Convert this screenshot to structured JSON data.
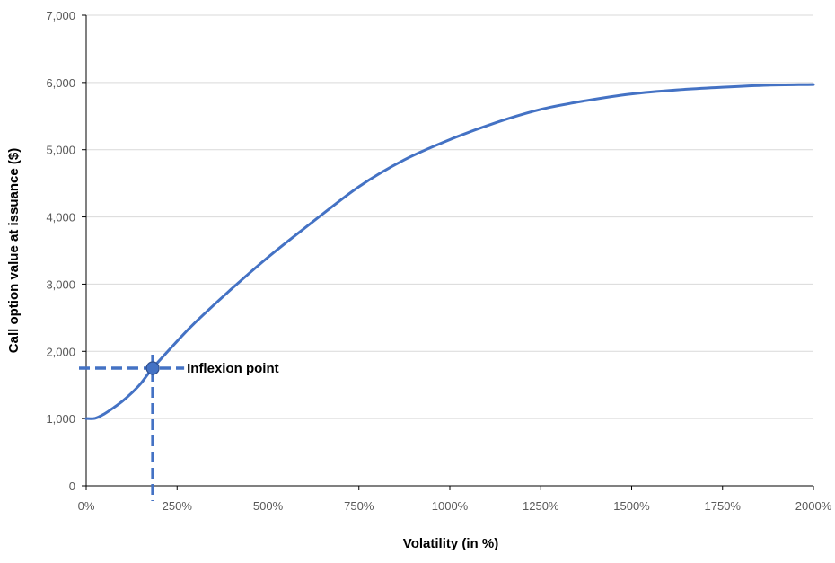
{
  "chart_data": {
    "type": "line",
    "title": "",
    "xlabel": "Volatility (in %)",
    "ylabel": "Call option value at issuance ($)",
    "xlim": [
      0,
      2000
    ],
    "ylim": [
      0,
      7000
    ],
    "x_ticks": [
      0,
      250,
      500,
      750,
      1000,
      1250,
      1500,
      1750,
      2000
    ],
    "x_tick_labels": [
      "0%",
      "250%",
      "500%",
      "750%",
      "1000%",
      "1250%",
      "1500%",
      "1750%",
      "2000%"
    ],
    "y_ticks": [
      0,
      1000,
      2000,
      3000,
      4000,
      5000,
      6000,
      7000
    ],
    "y_tick_labels": [
      "0",
      "1,000",
      "2,000",
      "3,000",
      "4,000",
      "5,000",
      "6,000",
      "7,000"
    ],
    "grid": "horizontal",
    "series": [
      {
        "color": "#4472C4",
        "x": [
          0,
          25,
          50,
          75,
          100,
          125,
          150,
          183,
          250,
          300,
          400,
          500,
          600,
          750,
          875,
          1000,
          1125,
          1250,
          1375,
          1500,
          1625,
          1750,
          1875,
          2000
        ],
        "y": [
          1000,
          1005,
          1070,
          1160,
          1260,
          1380,
          1520,
          1750,
          2150,
          2430,
          2930,
          3400,
          3830,
          4450,
          4850,
          5150,
          5400,
          5600,
          5730,
          5830,
          5890,
          5930,
          5960,
          5970
        ]
      }
    ],
    "annotations": [
      {
        "text": "Inflexion point",
        "x": 183,
        "y": 1750,
        "color": "#4472C4"
      }
    ]
  }
}
